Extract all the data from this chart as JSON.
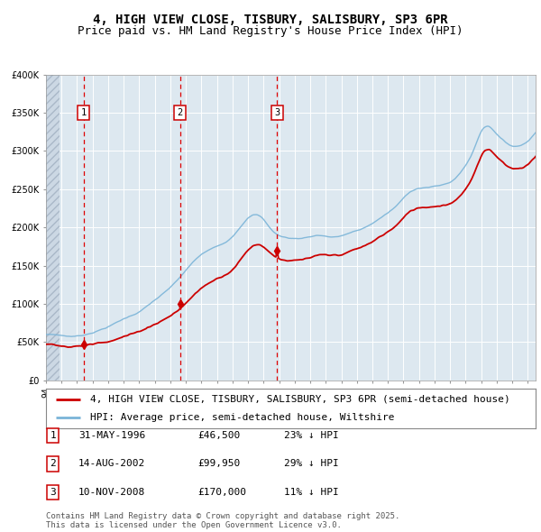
{
  "title": "4, HIGH VIEW CLOSE, TISBURY, SALISBURY, SP3 6PR",
  "subtitle": "Price paid vs. HM Land Registry's House Price Index (HPI)",
  "ylim": [
    0,
    400000
  ],
  "yticks": [
    0,
    50000,
    100000,
    150000,
    200000,
    250000,
    300000,
    350000,
    400000
  ],
  "ytick_labels": [
    "£0",
    "£50K",
    "£100K",
    "£150K",
    "£200K",
    "£250K",
    "£300K",
    "£350K",
    "£400K"
  ],
  "xlim_start": 1994.0,
  "xlim_end": 2025.5,
  "hpi_color": "#7ab4d8",
  "price_color": "#cc0000",
  "marker_color": "#cc0000",
  "vline_color": "#dd0000",
  "background_color": "#dde8f0",
  "grid_color": "#ffffff",
  "sale1_date_num": 1996.42,
  "sale1_price": 46500,
  "sale1_label": "1",
  "sale2_date_num": 2002.62,
  "sale2_price": 99950,
  "sale2_label": "2",
  "sale3_date_num": 2008.87,
  "sale3_price": 170000,
  "sale3_label": "3",
  "legend_line1": "4, HIGH VIEW CLOSE, TISBURY, SALISBURY, SP3 6PR (semi-detached house)",
  "legend_line2": "HPI: Average price, semi-detached house, Wiltshire",
  "table_row1": [
    "1",
    "31-MAY-1996",
    "£46,500",
    "23% ↓ HPI"
  ],
  "table_row2": [
    "2",
    "14-AUG-2002",
    "£99,950",
    "29% ↓ HPI"
  ],
  "table_row3": [
    "3",
    "10-NOV-2008",
    "£170,000",
    "11% ↓ HPI"
  ],
  "footer": "Contains HM Land Registry data © Crown copyright and database right 2025.\nThis data is licensed under the Open Government Licence v3.0.",
  "title_fontsize": 10,
  "subtitle_fontsize": 9,
  "tick_fontsize": 7,
  "legend_fontsize": 8,
  "table_fontsize": 8,
  "footer_fontsize": 6.5
}
